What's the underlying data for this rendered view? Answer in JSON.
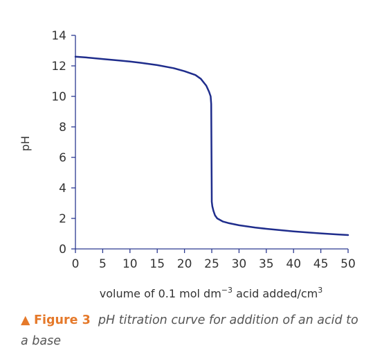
{
  "chart_data": {
    "type": "line",
    "ylabel": "pH",
    "xlabel_prefix": "volume of 0.1 mol dm",
    "xlabel_exp1": "−3",
    "xlabel_mid": " acid added/cm",
    "xlabel_exp2": "3",
    "xlim": [
      0,
      50
    ],
    "ylim": [
      0,
      14
    ],
    "xticks": [
      0,
      5,
      10,
      15,
      20,
      25,
      30,
      35,
      40,
      45,
      50
    ],
    "yticks": [
      0,
      2,
      4,
      6,
      8,
      10,
      12,
      14
    ],
    "grid": false,
    "line_color": "#1f2d8c",
    "axis_color": "#2b3990",
    "series": [
      {
        "x": [
          0,
          2,
          5,
          8,
          10,
          12,
          15,
          18,
          20,
          22,
          23,
          24,
          24.5,
          24.8,
          24.9,
          25,
          25,
          25.1,
          25.3,
          25.6,
          26,
          27,
          28,
          30,
          33,
          35,
          38,
          40,
          43,
          45,
          48,
          50
        ],
        "y": [
          12.6,
          12.55,
          12.45,
          12.35,
          12.28,
          12.2,
          12.05,
          11.85,
          11.65,
          11.4,
          11.15,
          10.7,
          10.3,
          10.0,
          9.5,
          3.3,
          3.1,
          2.8,
          2.5,
          2.2,
          2.0,
          1.8,
          1.7,
          1.55,
          1.4,
          1.32,
          1.22,
          1.15,
          1.07,
          1.02,
          0.95,
          0.91
        ]
      }
    ]
  },
  "caption": {
    "label": "Figure 3",
    "text": "pH titration curve for addition of an acid to a base",
    "marker_color": "#e5792a"
  }
}
